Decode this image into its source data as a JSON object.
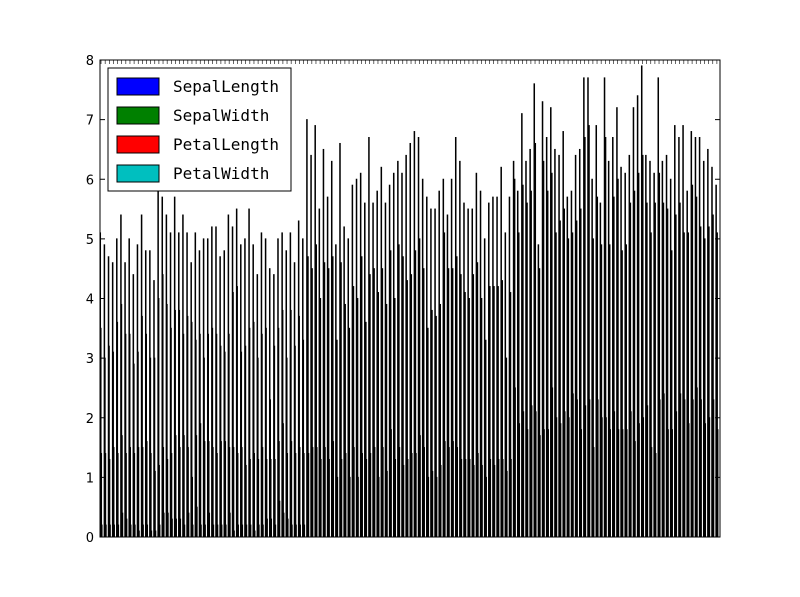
{
  "chart_data": {
    "type": "bar",
    "grouping": "grouped",
    "n_records": 150,
    "ylim": [
      0,
      8
    ],
    "yticks": [
      0,
      1,
      2,
      3,
      4,
      5,
      6,
      7,
      8
    ],
    "grid": false,
    "legend_placement": "top-left",
    "bar_edge_color": "#000000",
    "categories_note": "x tick labels are row indices 0-149, overlapping and illegible",
    "series": [
      {
        "name": "SepalLength",
        "color": "#0000ff",
        "values": [
          5.1,
          4.9,
          4.7,
          4.6,
          5.0,
          5.4,
          4.6,
          5.0,
          4.4,
          4.9,
          5.4,
          4.8,
          4.8,
          4.3,
          5.8,
          5.7,
          5.4,
          5.1,
          5.7,
          5.1,
          5.4,
          5.1,
          4.6,
          5.1,
          4.8,
          5.0,
          5.0,
          5.2,
          5.2,
          4.7,
          4.8,
          5.4,
          5.2,
          5.5,
          4.9,
          5.0,
          5.5,
          4.9,
          4.4,
          5.1,
          5.0,
          4.5,
          4.4,
          5.0,
          5.1,
          4.8,
          5.1,
          4.6,
          5.3,
          5.0,
          7.0,
          6.4,
          6.9,
          5.5,
          6.5,
          5.7,
          6.3,
          4.9,
          6.6,
          5.2,
          5.0,
          5.9,
          6.0,
          6.1,
          5.6,
          6.7,
          5.6,
          5.8,
          6.2,
          5.6,
          5.9,
          6.1,
          6.3,
          6.1,
          6.4,
          6.6,
          6.8,
          6.7,
          6.0,
          5.7,
          5.5,
          5.5,
          5.8,
          6.0,
          5.4,
          6.0,
          6.7,
          6.3,
          5.6,
          5.5,
          5.5,
          6.1,
          5.8,
          5.0,
          5.6,
          5.7,
          5.7,
          6.2,
          5.1,
          5.7,
          6.3,
          5.8,
          7.1,
          6.3,
          6.5,
          7.6,
          4.9,
          7.3,
          6.7,
          7.2,
          6.5,
          6.4,
          6.8,
          5.7,
          5.8,
          6.4,
          6.5,
          7.7,
          7.7,
          6.0,
          6.9,
          5.6,
          7.7,
          6.3,
          6.7,
          7.2,
          6.2,
          6.1,
          6.4,
          7.2,
          7.4,
          7.9,
          6.4,
          6.3,
          6.1,
          7.7,
          6.3,
          6.4,
          6.0,
          6.9,
          6.7,
          6.9,
          5.8,
          6.8,
          6.7,
          6.7,
          6.3,
          6.5,
          6.2,
          5.9
        ]
      },
      {
        "name": "SepalWidth",
        "color": "#008000",
        "values": [
          3.5,
          3.0,
          3.2,
          3.1,
          3.6,
          3.9,
          3.4,
          3.4,
          2.9,
          3.1,
          3.7,
          3.4,
          3.0,
          3.0,
          4.0,
          4.4,
          3.9,
          3.5,
          3.8,
          3.8,
          3.4,
          3.7,
          3.6,
          3.3,
          3.4,
          3.0,
          3.4,
          3.5,
          3.4,
          3.2,
          3.1,
          3.4,
          4.1,
          4.2,
          3.1,
          3.2,
          3.5,
          3.6,
          3.0,
          3.4,
          3.5,
          2.3,
          3.2,
          3.5,
          3.8,
          3.0,
          3.8,
          3.2,
          3.7,
          3.3,
          3.2,
          3.2,
          3.1,
          2.3,
          2.8,
          2.8,
          3.3,
          2.4,
          2.9,
          2.7,
          2.0,
          3.0,
          2.2,
          2.9,
          2.9,
          3.1,
          3.0,
          2.7,
          2.2,
          2.5,
          3.2,
          2.8,
          2.5,
          2.8,
          2.9,
          3.0,
          2.8,
          3.0,
          2.9,
          2.6,
          2.4,
          2.4,
          2.7,
          2.7,
          3.0,
          3.4,
          3.1,
          2.3,
          3.0,
          2.5,
          2.6,
          3.0,
          2.6,
          2.3,
          2.7,
          3.0,
          2.9,
          2.9,
          2.5,
          2.8,
          3.3,
          2.7,
          3.0,
          2.9,
          3.0,
          3.0,
          2.5,
          2.9,
          2.5,
          3.6,
          3.2,
          2.7,
          3.0,
          2.5,
          2.8,
          3.2,
          3.0,
          3.8,
          2.6,
          2.2,
          3.2,
          2.8,
          2.8,
          2.7,
          3.3,
          3.2,
          2.8,
          3.0,
          2.8,
          3.0,
          2.8,
          3.8,
          2.8,
          2.8,
          2.6,
          3.0,
          3.4,
          3.1,
          3.0,
          3.1,
          3.1,
          3.1,
          2.7,
          3.2,
          3.3,
          3.0,
          2.5,
          3.0,
          3.4,
          3.0
        ]
      },
      {
        "name": "PetalLength",
        "color": "#ff0000",
        "values": [
          1.4,
          1.4,
          1.3,
          1.5,
          1.4,
          1.7,
          1.4,
          1.5,
          1.4,
          1.5,
          1.5,
          1.6,
          1.4,
          1.1,
          1.2,
          1.5,
          1.3,
          1.4,
          1.7,
          1.5,
          1.7,
          1.5,
          1.0,
          1.7,
          1.9,
          1.6,
          1.6,
          1.5,
          1.4,
          1.6,
          1.6,
          1.5,
          1.5,
          1.4,
          1.5,
          1.2,
          1.3,
          1.4,
          1.3,
          1.5,
          1.3,
          1.3,
          1.3,
          1.6,
          1.9,
          1.4,
          1.6,
          1.4,
          1.5,
          1.4,
          4.7,
          4.5,
          4.9,
          4.0,
          4.6,
          4.5,
          4.7,
          3.3,
          4.6,
          3.9,
          3.5,
          4.2,
          4.0,
          4.7,
          3.6,
          4.4,
          4.5,
          4.1,
          4.5,
          3.9,
          4.8,
          4.0,
          4.9,
          4.7,
          4.3,
          4.4,
          4.8,
          5.0,
          4.5,
          3.5,
          3.8,
          3.7,
          3.9,
          5.1,
          4.5,
          4.5,
          4.7,
          4.4,
          4.1,
          4.0,
          4.4,
          4.6,
          4.0,
          3.3,
          4.2,
          4.2,
          4.2,
          4.3,
          3.0,
          4.1,
          6.0,
          5.1,
          5.9,
          5.6,
          5.8,
          6.6,
          4.5,
          6.3,
          5.8,
          6.1,
          5.1,
          5.3,
          5.5,
          5.0,
          5.1,
          5.3,
          5.5,
          6.7,
          6.9,
          5.0,
          5.7,
          4.9,
          6.7,
          4.9,
          5.7,
          6.0,
          4.8,
          4.9,
          5.6,
          5.8,
          6.1,
          6.4,
          5.6,
          5.1,
          5.6,
          6.1,
          5.6,
          5.5,
          4.8,
          5.4,
          5.6,
          5.1,
          5.1,
          5.9,
          5.7,
          5.2,
          5.0,
          5.2,
          5.4,
          5.1
        ]
      },
      {
        "name": "PetalWidth",
        "color": "#00bfbf",
        "values": [
          0.2,
          0.2,
          0.2,
          0.2,
          0.2,
          0.4,
          0.3,
          0.2,
          0.2,
          0.1,
          0.2,
          0.2,
          0.1,
          0.1,
          0.2,
          0.4,
          0.4,
          0.3,
          0.3,
          0.3,
          0.2,
          0.4,
          0.2,
          0.5,
          0.2,
          0.2,
          0.4,
          0.2,
          0.2,
          0.2,
          0.2,
          0.4,
          0.1,
          0.2,
          0.2,
          0.2,
          0.2,
          0.1,
          0.2,
          0.2,
          0.3,
          0.3,
          0.2,
          0.6,
          0.4,
          0.3,
          0.2,
          0.2,
          0.2,
          0.2,
          1.4,
          1.5,
          1.5,
          1.3,
          1.5,
          1.3,
          1.6,
          1.0,
          1.3,
          1.4,
          1.0,
          1.5,
          1.0,
          1.4,
          1.3,
          1.4,
          1.5,
          1.0,
          1.5,
          1.1,
          1.8,
          1.3,
          1.5,
          1.2,
          1.3,
          1.4,
          1.4,
          1.7,
          1.5,
          1.0,
          1.1,
          1.0,
          1.2,
          1.6,
          1.5,
          1.6,
          1.5,
          1.3,
          1.3,
          1.3,
          1.2,
          1.4,
          1.2,
          1.0,
          1.3,
          1.2,
          1.3,
          1.3,
          1.1,
          1.3,
          2.5,
          1.9,
          2.1,
          1.8,
          2.2,
          2.1,
          1.7,
          1.8,
          1.8,
          2.5,
          2.0,
          1.9,
          2.1,
          2.0,
          2.4,
          2.3,
          1.8,
          2.2,
          2.3,
          1.5,
          2.3,
          2.0,
          2.0,
          1.8,
          2.1,
          1.8,
          1.8,
          1.8,
          2.1,
          1.6,
          1.9,
          2.0,
          2.2,
          1.5,
          1.4,
          2.3,
          2.4,
          1.8,
          1.8,
          2.1,
          2.4,
          2.3,
          1.9,
          2.3,
          2.5,
          2.3,
          1.9,
          2.0,
          2.3,
          1.8
        ]
      }
    ]
  }
}
